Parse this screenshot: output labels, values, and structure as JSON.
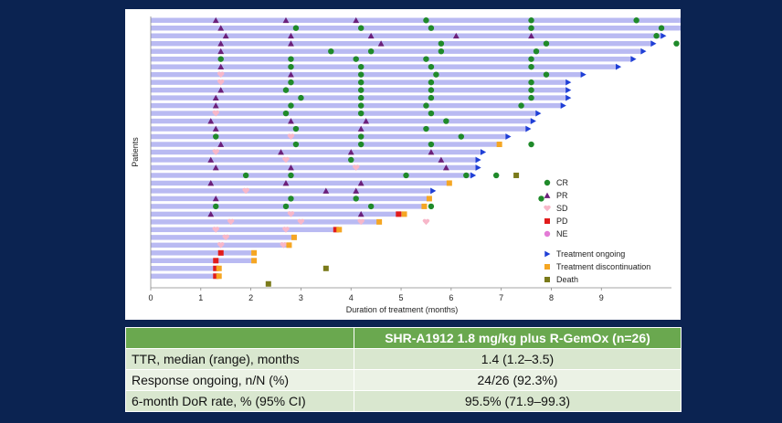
{
  "chart_data": {
    "type": "swimmer",
    "xlabel": "Duration of treatment (months)",
    "ylabel": "Patients",
    "xlim": [
      0,
      10.4
    ],
    "x_ticks": [
      0,
      1,
      2,
      3,
      4,
      5,
      6,
      7,
      8,
      9
    ],
    "legend_placement": "bottom-right",
    "legend": [
      {
        "key": "CR",
        "label": "CR",
        "shape": "circle",
        "color": "#1f8a2a"
      },
      {
        "key": "PR",
        "label": "PR",
        "shape": "triangle-up",
        "color": "#6b1f7a"
      },
      {
        "key": "SD",
        "label": "SD",
        "shape": "heart",
        "color": "#f7b7c9"
      },
      {
        "key": "PD",
        "label": "PD",
        "shape": "square",
        "color": "#e11b1b"
      },
      {
        "key": "NE",
        "label": "NE",
        "shape": "circle",
        "color": "#e37bd6"
      },
      {
        "key": "ongoing",
        "label": "Treatment ongoing",
        "shape": "triangle-right",
        "color": "#1f3fd6"
      },
      {
        "key": "disc",
        "label": "Treatment discontinuation",
        "shape": "square",
        "color": "#f5a623"
      },
      {
        "key": "death",
        "label": "Death",
        "shape": "square",
        "color": "#7a7a1a"
      }
    ],
    "bar_color": "#b9baf2",
    "patients": [
      {
        "duration": 11.8,
        "end": "ongoing",
        "events": [
          [
            "PR",
            1.3
          ],
          [
            "PR",
            2.7
          ],
          [
            "PR",
            4.1
          ],
          [
            "CR",
            5.5
          ],
          [
            "CR",
            7.6
          ],
          [
            "CR",
            9.7
          ]
        ]
      },
      {
        "duration": 10.8,
        "end": "ongoing",
        "events": [
          [
            "PR",
            1.4
          ],
          [
            "CR",
            2.9
          ],
          [
            "CR",
            4.2
          ],
          [
            "CR",
            5.6
          ],
          [
            "CR",
            7.6
          ],
          [
            "CR",
            10.2
          ]
        ]
      },
      {
        "duration": 10.2,
        "end": "ongoing",
        "events": [
          [
            "PR",
            1.5
          ],
          [
            "PR",
            2.8
          ],
          [
            "PR",
            4.4
          ],
          [
            "PR",
            6.1
          ],
          [
            "PR",
            7.6
          ],
          [
            "CR",
            10.1
          ]
        ]
      },
      {
        "duration": 10.0,
        "end": "ongoing",
        "events": [
          [
            "PR",
            1.4
          ],
          [
            "PR",
            2.8
          ],
          [
            "PR",
            4.6
          ],
          [
            "CR",
            5.8
          ],
          [
            "CR",
            7.9
          ],
          [
            "CR",
            10.5
          ]
        ]
      },
      {
        "duration": 9.8,
        "end": "ongoing",
        "events": [
          [
            "PR",
            1.4
          ],
          [
            "CR",
            3.6
          ],
          [
            "CR",
            4.4
          ],
          [
            "CR",
            5.8
          ],
          [
            "CR",
            7.7
          ]
        ]
      },
      {
        "duration": 9.6,
        "end": "ongoing",
        "events": [
          [
            "CR",
            1.4
          ],
          [
            "CR",
            2.8
          ],
          [
            "CR",
            4.1
          ],
          [
            "CR",
            5.5
          ],
          [
            "CR",
            7.6
          ]
        ]
      },
      {
        "duration": 9.3,
        "end": "ongoing",
        "events": [
          [
            "PR",
            1.4
          ],
          [
            "CR",
            2.8
          ],
          [
            "CR",
            4.2
          ],
          [
            "CR",
            5.6
          ],
          [
            "CR",
            7.6
          ]
        ]
      },
      {
        "duration": 8.6,
        "end": "ongoing",
        "events": [
          [
            "SD",
            1.4
          ],
          [
            "PR",
            2.8
          ],
          [
            "CR",
            4.2
          ],
          [
            "CR",
            5.7
          ],
          [
            "CR",
            7.9
          ]
        ]
      },
      {
        "duration": 8.3,
        "end": "ongoing",
        "events": [
          [
            "SD",
            1.4
          ],
          [
            "CR",
            2.8
          ],
          [
            "CR",
            4.2
          ],
          [
            "CR",
            5.6
          ],
          [
            "CR",
            7.6
          ]
        ]
      },
      {
        "duration": 8.3,
        "end": "ongoing",
        "events": [
          [
            "PR",
            1.4
          ],
          [
            "CR",
            2.7
          ],
          [
            "CR",
            4.2
          ],
          [
            "CR",
            5.6
          ],
          [
            "CR",
            7.6
          ]
        ]
      },
      {
        "duration": 8.3,
        "end": "ongoing",
        "events": [
          [
            "PR",
            1.3
          ],
          [
            "CR",
            3.0
          ],
          [
            "CR",
            4.2
          ],
          [
            "CR",
            5.6
          ],
          [
            "CR",
            7.6
          ]
        ]
      },
      {
        "duration": 8.2,
        "end": "ongoing",
        "events": [
          [
            "PR",
            1.3
          ],
          [
            "CR",
            2.8
          ],
          [
            "CR",
            4.2
          ],
          [
            "CR",
            5.5
          ],
          [
            "CR",
            7.4
          ]
        ]
      },
      {
        "duration": 7.7,
        "end": "ongoing",
        "events": [
          [
            "SD",
            1.3
          ],
          [
            "CR",
            2.7
          ],
          [
            "CR",
            4.2
          ],
          [
            "CR",
            5.6
          ]
        ]
      },
      {
        "duration": 7.6,
        "end": "ongoing",
        "events": [
          [
            "PR",
            1.2
          ],
          [
            "PR",
            2.8
          ],
          [
            "PR",
            4.3
          ],
          [
            "CR",
            5.9
          ]
        ]
      },
      {
        "duration": 7.5,
        "end": "ongoing",
        "events": [
          [
            "PR",
            1.3
          ],
          [
            "CR",
            2.9
          ],
          [
            "PR",
            4.2
          ],
          [
            "CR",
            5.5
          ]
        ]
      },
      {
        "duration": 7.1,
        "end": "ongoing",
        "events": [
          [
            "CR",
            1.3
          ],
          [
            "SD",
            2.8
          ],
          [
            "CR",
            4.2
          ],
          [
            "CR",
            6.2
          ]
        ]
      },
      {
        "duration": 7.0,
        "end": "disc",
        "events": [
          [
            "PR",
            1.4
          ],
          [
            "CR",
            2.9
          ],
          [
            "CR",
            4.2
          ],
          [
            "CR",
            5.6
          ],
          [
            "CR",
            7.6
          ]
        ]
      },
      {
        "duration": 6.6,
        "end": "ongoing",
        "events": [
          [
            "SD",
            1.3
          ],
          [
            "PR",
            2.6
          ],
          [
            "PR",
            4.0
          ],
          [
            "PR",
            5.6
          ]
        ]
      },
      {
        "duration": 6.5,
        "end": "ongoing",
        "events": [
          [
            "PR",
            1.2
          ],
          [
            "SD",
            2.7
          ],
          [
            "CR",
            4.0
          ],
          [
            "PR",
            5.8
          ]
        ]
      },
      {
        "duration": 6.5,
        "end": "ongoing",
        "events": [
          [
            "PR",
            1.3
          ],
          [
            "PR",
            2.8
          ],
          [
            "SD",
            4.1
          ],
          [
            "PR",
            5.9
          ]
        ]
      },
      {
        "duration": 6.4,
        "end": "ongoing",
        "events": [
          [
            "CR",
            1.9
          ],
          [
            "CR",
            2.8
          ],
          [
            "CR",
            5.1
          ],
          [
            "CR",
            6.3
          ],
          [
            "CR",
            6.9
          ]
        ],
        "death": 7.3
      },
      {
        "duration": 6.0,
        "end": "disc",
        "events": [
          [
            "PR",
            1.2
          ],
          [
            "PR",
            2.7
          ],
          [
            "PR",
            4.2
          ]
        ]
      },
      {
        "duration": 5.6,
        "end": "ongoing",
        "events": [
          [
            "SD",
            1.9
          ],
          [
            "PR",
            3.5
          ],
          [
            "PR",
            4.1
          ]
        ]
      },
      {
        "duration": 5.6,
        "end": "disc",
        "events": [
          [
            "PR",
            1.3
          ],
          [
            "CR",
            2.8
          ],
          [
            "CR",
            4.1
          ],
          [
            "CR",
            7.8
          ]
        ]
      },
      {
        "duration": 5.5,
        "end": "disc",
        "events": [
          [
            "CR",
            1.3
          ],
          [
            "CR",
            2.7
          ],
          [
            "CR",
            4.4
          ],
          [
            "CR",
            5.6
          ]
        ]
      },
      {
        "duration": 5.1,
        "end": "disc",
        "events": [
          [
            "PR",
            1.2
          ],
          [
            "SD",
            2.8
          ],
          [
            "PR",
            4.2
          ]
        ],
        "pd": 4.95
      },
      {
        "duration": 4.6,
        "end": "disc",
        "events": [
          [
            "SD",
            1.6
          ],
          [
            "SD",
            3.0
          ],
          [
            "SD",
            4.2
          ],
          [
            "SD",
            5.5
          ]
        ]
      },
      {
        "duration": 3.8,
        "end": "disc",
        "events": [
          [
            "SD",
            1.3
          ],
          [
            "SD",
            2.7
          ]
        ],
        "pd": 3.7
      },
      {
        "duration": 2.9,
        "end": "disc",
        "events": [
          [
            "SD",
            1.5
          ]
        ]
      },
      {
        "duration": 2.8,
        "end": "disc",
        "events": [
          [
            "SD",
            1.4
          ],
          [
            "SD",
            2.65
          ]
        ]
      },
      {
        "duration": 2.1,
        "end": "disc",
        "events": [],
        "pd": 1.4
      },
      {
        "duration": 2.1,
        "end": "disc",
        "events": [],
        "pd": 1.3
      },
      {
        "duration": 1.4,
        "end": "disc",
        "events": [],
        "pd": 1.3,
        "death": 3.5
      },
      {
        "duration": 1.4,
        "end": "disc",
        "events": [],
        "pd": 1.3
      },
      {
        "duration": 0,
        "end": "none",
        "events": [],
        "death": 2.35
      }
    ]
  },
  "table": {
    "header": "SHR-A1912 1.8 mg/kg plus R-GemOx (n=26)",
    "rows": [
      {
        "label": "TTR, median (range), months",
        "value": "1.4 (1.2–3.5)"
      },
      {
        "label": "Response ongoing, n/N (%)",
        "value": "24/26 (92.3%)"
      },
      {
        "label": "6-month DoR rate, % (95% CI)",
        "value": "95.5% (71.9–99.3)"
      }
    ]
  }
}
